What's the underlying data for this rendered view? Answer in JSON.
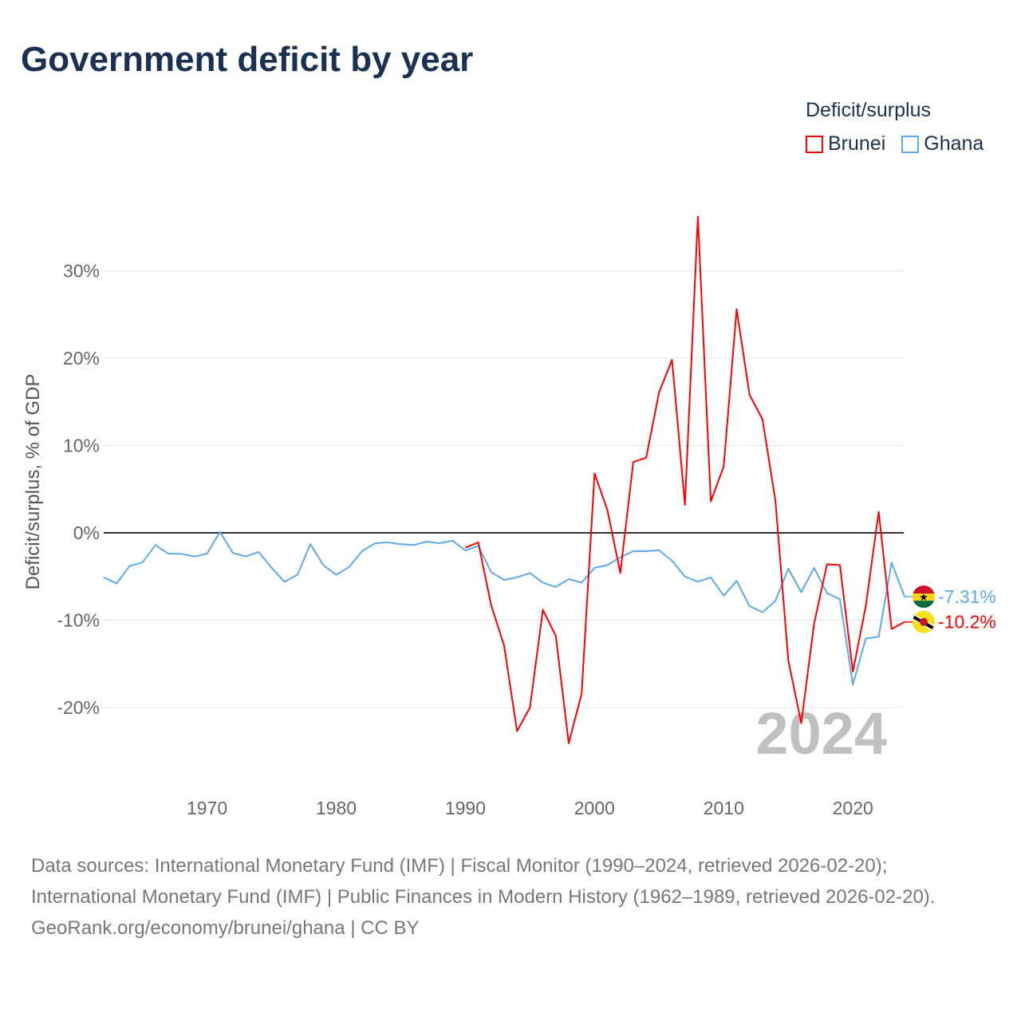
{
  "title": "Government deficit by year",
  "legend": {
    "title": "Deficit/surplus",
    "items": [
      {
        "label": "Brunei",
        "color": "#ff0000"
      },
      {
        "label": "Ghana",
        "color": "#5ea9ec"
      }
    ]
  },
  "chart_data": {
    "type": "line",
    "title": "Government deficit by year",
    "xlabel": "",
    "ylabel": "Deficit/surplus, % of GDP",
    "xlim": [
      1962,
      2024
    ],
    "ylim": [
      -25,
      37
    ],
    "yticks": [
      30,
      20,
      10,
      0,
      -10,
      -20
    ],
    "ytick_labels": [
      "30%",
      "20%",
      "10%",
      "0%",
      "-10%",
      "-20%"
    ],
    "xticks": [
      1970,
      1980,
      1990,
      2000,
      2010,
      2020
    ],
    "xtick_labels": [
      "1970",
      "1980",
      "1990",
      "2000",
      "2010",
      "2020"
    ],
    "grid": true,
    "legend_position": "top-right",
    "year_watermark": "2024",
    "series": [
      {
        "name": "Brunei",
        "color": "#ff0000",
        "end_label": "-10.2%",
        "x_start": 1990,
        "values": [
          -1.7,
          -1.1,
          -8.3,
          -12.9,
          -22.7,
          -20.0,
          -8.8,
          -11.8,
          -24.1,
          -18.4,
          6.8,
          2.6,
          -4.6,
          8.1,
          8.6,
          16.1,
          19.8,
          3.2,
          36.2,
          3.6,
          7.6,
          25.6,
          15.8,
          13.0,
          3.7,
          -14.6,
          -21.8,
          -10.4,
          -3.6,
          -3.7,
          -15.9,
          -8.4,
          2.4,
          -11.0,
          -10.2
        ]
      },
      {
        "name": "Ghana",
        "color": "#5ea9ec",
        "end_label": "-7.31%",
        "x_start": 1962,
        "values": [
          -5.1,
          -5.8,
          -3.8,
          -3.4,
          -1.4,
          -2.4,
          -2.4,
          -2.7,
          -2.4,
          0.1,
          -2.3,
          -2.7,
          -2.2,
          -4.0,
          -5.6,
          -4.8,
          -1.3,
          -3.7,
          -4.8,
          -3.9,
          -2.1,
          -1.2,
          -1.1,
          -1.3,
          -1.4,
          -1.0,
          -1.2,
          -0.9,
          -2.0,
          -1.5,
          -4.5,
          -5.4,
          -5.1,
          -4.6,
          -5.7,
          -6.2,
          -5.3,
          -5.7,
          -4.0,
          -3.7,
          -2.8,
          -2.1,
          -2.1,
          -2.0,
          -3.2,
          -5.0,
          -5.6,
          -5.1,
          -7.2,
          -5.5,
          -8.4,
          -9.1,
          -7.8,
          -4.1,
          -6.8,
          -4.0,
          -6.9,
          -7.6,
          -17.4,
          -12.1,
          -11.9,
          -3.4,
          -7.31
        ]
      }
    ]
  },
  "footer": {
    "sources": "Data sources: International Monetary Fund (IMF) | Fiscal Monitor (1990–2024, retrieved 2026-02-20); International Monetary Fund (IMF) | Public Finances in Modern History (1962–1989, retrieved 2026-02-20).",
    "credit": "GeoRank.org/economy/brunei/ghana | CC BY"
  }
}
